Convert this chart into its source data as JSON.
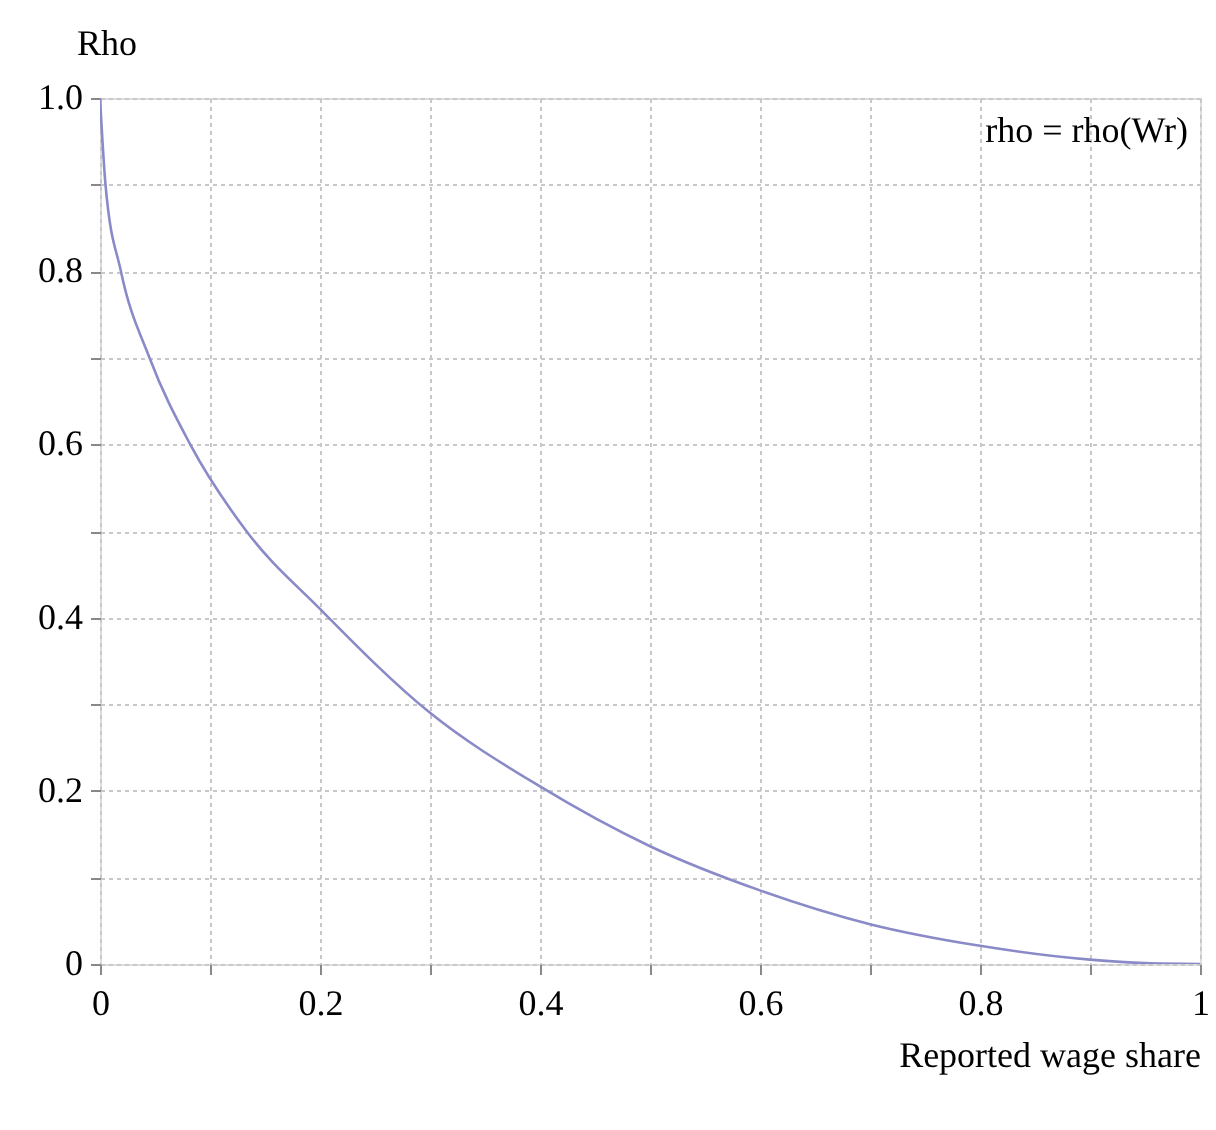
{
  "chart_data": {
    "type": "line",
    "xlabel": "Reported wage share",
    "ylabel": "Rho",
    "x": [
      0,
      0.005,
      0.019,
      0.045,
      0.082,
      0.133,
      0.2,
      0.3,
      0.4,
      0.5,
      0.6,
      0.7,
      0.8,
      0.9,
      0.95,
      1
    ],
    "series": [
      {
        "color": "#8a8ac8",
        "values": [
          1,
          0.9,
          0.8,
          0.7,
          0.6,
          0.5,
          0.41,
          0.29,
          0.205,
          0.136,
          0.085,
          0.046,
          0.021,
          0.005,
          0.001,
          0
        ]
      }
    ],
    "annotations": [
      "rho = rho(Wr)"
    ],
    "xlim": [
      0,
      1
    ],
    "ylim": [
      0,
      1
    ],
    "xticks": [
      0,
      {
        "value": 0.1,
        "label": null
      },
      0.2,
      {
        "value": 0.3,
        "label": null
      },
      0.4,
      {
        "value": 0.5,
        "label": null
      },
      0.6,
      {
        "value": 0.7,
        "label": null
      },
      0.8,
      {
        "value": 0.9,
        "label": null
      },
      1
    ],
    "yticks": [
      0,
      {
        "value": 0.1,
        "label": null
      },
      0.2,
      {
        "value": 0.3,
        "label": null
      },
      0.4,
      {
        "value": 0.5,
        "label": null
      },
      0.6,
      {
        "value": 0.7,
        "label": null
      },
      0.8,
      {
        "value": 0.9,
        "label": null
      },
      {
        "value": 1,
        "label": "1.0"
      }
    ],
    "grid": true,
    "line_style": "solid",
    "marker": "none"
  }
}
